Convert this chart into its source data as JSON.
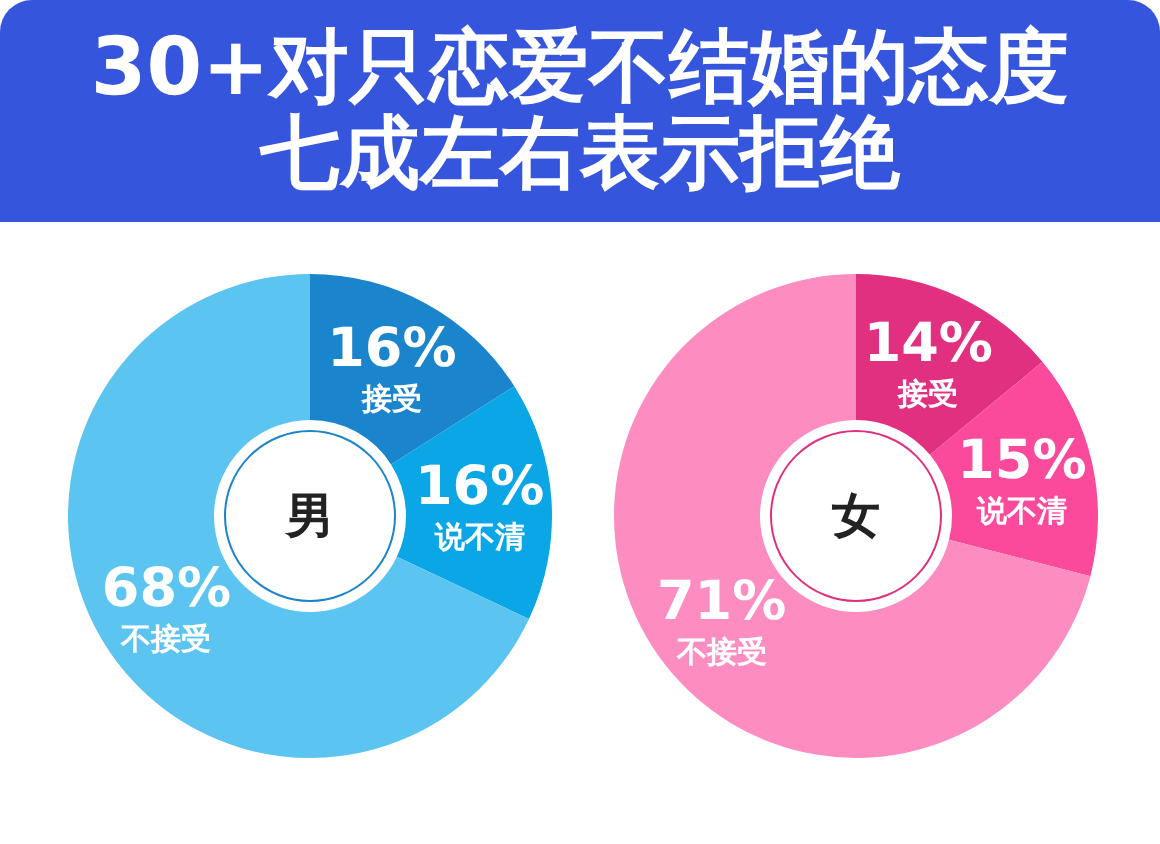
{
  "chart_data": [
    {
      "type": "donut",
      "title": "30+对只恋爱不结婚的态度",
      "subtitle": "七成左右表示拒绝",
      "annotations": [
        "男"
      ],
      "categories": [
        "接受",
        "说不清",
        "不接受"
      ],
      "values": [
        16,
        16,
        68
      ],
      "value_labels": [
        "16%",
        "16%",
        "68%"
      ],
      "colors": [
        "#1a85cc",
        "#0ba6e5",
        "#5cc4f0"
      ]
    },
    {
      "type": "donut",
      "annotations": [
        "女"
      ],
      "categories": [
        "接受",
        "说不清",
        "不接受"
      ],
      "values": [
        14,
        15,
        71
      ],
      "value_labels": [
        "14%",
        "15%",
        "71%"
      ],
      "colors": [
        "#e0307f",
        "#fb4a9b",
        "#fd8dc1"
      ]
    }
  ]
}
